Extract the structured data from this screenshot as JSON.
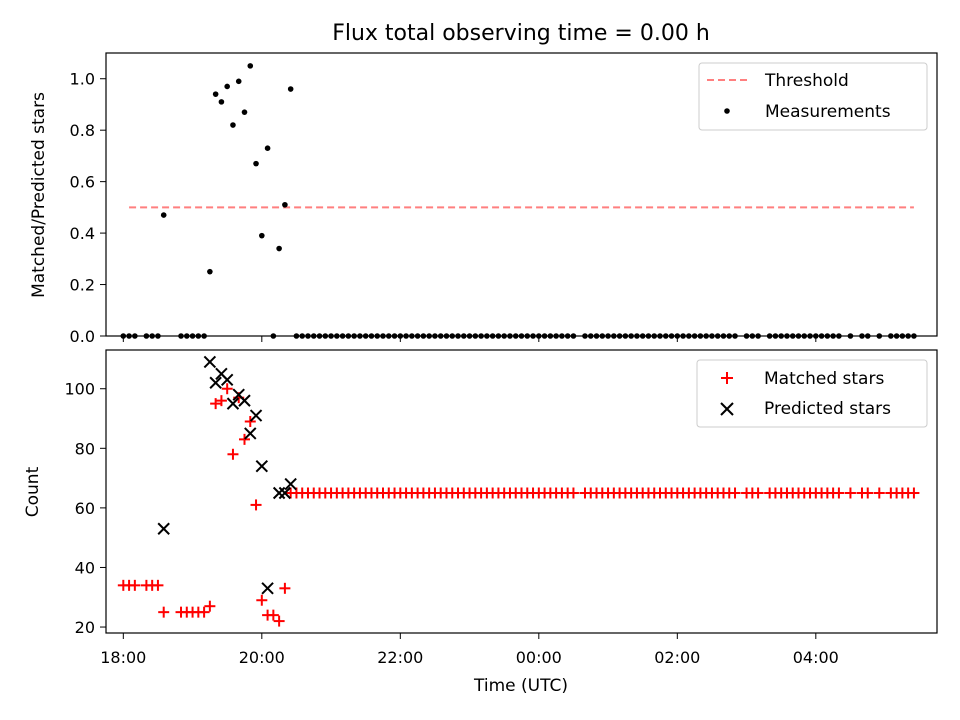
{
  "chart_data": [
    {
      "type": "scatter",
      "title": "Flux total observing time = 0.00 h",
      "xlabel": "",
      "ylabel": "Matched/Predicted stars",
      "xlim": [
        "17:45",
        "05:45"
      ],
      "ylim": [
        0,
        1.1
      ],
      "yticks": [
        "0.0",
        "0.2",
        "0.4",
        "0.6",
        "0.8",
        "1.0"
      ],
      "grid": false,
      "legend_position": "top-right",
      "threshold": {
        "name": "Threshold",
        "value": 0.5,
        "x_range": [
          "18:05",
          "05:25"
        ],
        "color": "#ff7f7f",
        "style": "dashed"
      },
      "series": [
        {
          "name": "Measurements",
          "color": "#000000",
          "marker": "dot",
          "points": [
            [
              "18:00",
              0.0
            ],
            [
              "18:05",
              0.0
            ],
            [
              "18:10",
              0.0
            ],
            [
              "18:20",
              0.0
            ],
            [
              "18:25",
              0.0
            ],
            [
              "18:30",
              0.0
            ],
            [
              "18:35",
              0.47
            ],
            [
              "18:50",
              0.0
            ],
            [
              "18:55",
              0.0
            ],
            [
              "19:00",
              0.0
            ],
            [
              "19:05",
              0.0
            ],
            [
              "19:10",
              0.0
            ],
            [
              "19:15",
              0.25
            ],
            [
              "19:20",
              0.94
            ],
            [
              "19:25",
              0.91
            ],
            [
              "19:30",
              0.97
            ],
            [
              "19:35",
              0.82
            ],
            [
              "19:40",
              0.99
            ],
            [
              "19:45",
              0.87
            ],
            [
              "19:50",
              1.05
            ],
            [
              "19:55",
              0.67
            ],
            [
              "20:00",
              0.39
            ],
            [
              "20:05",
              0.73
            ],
            [
              "20:10",
              0.0
            ],
            [
              "20:15",
              0.34
            ],
            [
              "20:20",
              0.51
            ],
            [
              "20:25",
              0.96
            ],
            [
              "20:30",
              0.0
            ],
            [
              "20:35",
              0.0
            ]
          ],
          "zero_range": [
            "20:30",
            "05:25"
          ],
          "zero_step_minutes": 5,
          "zero_gaps": [
            "00:35",
            "02:55",
            "03:15",
            "04:25",
            "04:35",
            "04:50",
            "05:00"
          ]
        }
      ]
    },
    {
      "type": "scatter",
      "title": "",
      "xlabel": "Time (UTC)",
      "ylabel": "Count",
      "xlim": [
        "17:45",
        "05:45"
      ],
      "ylim": [
        18,
        113
      ],
      "yticks": [
        "20",
        "40",
        "60",
        "80",
        "100"
      ],
      "xticks": [
        "18:00",
        "20:00",
        "22:00",
        "00:00",
        "02:00",
        "04:00"
      ],
      "grid": false,
      "legend_position": "top-right",
      "series": [
        {
          "name": "Matched stars",
          "color": "#ff0000",
          "marker": "plus",
          "points": [
            [
              "18:00",
              34
            ],
            [
              "18:05",
              34
            ],
            [
              "18:10",
              34
            ],
            [
              "18:20",
              34
            ],
            [
              "18:25",
              34
            ],
            [
              "18:30",
              34
            ],
            [
              "18:35",
              25
            ],
            [
              "18:50",
              25
            ],
            [
              "18:55",
              25
            ],
            [
              "19:00",
              25
            ],
            [
              "19:05",
              25
            ],
            [
              "19:10",
              25
            ],
            [
              "19:15",
              27
            ],
            [
              "19:20",
              95
            ],
            [
              "19:25",
              96
            ],
            [
              "19:30",
              100
            ],
            [
              "19:35",
              78
            ],
            [
              "19:40",
              97
            ],
            [
              "19:45",
              83
            ],
            [
              "19:50",
              89
            ],
            [
              "19:55",
              61
            ],
            [
              "20:00",
              29
            ],
            [
              "20:05",
              24
            ],
            [
              "20:10",
              24
            ],
            [
              "20:15",
              22
            ],
            [
              "20:20",
              33
            ],
            [
              "20:25",
              65
            ]
          ],
          "constant_range": [
            "20:30",
            "05:25"
          ],
          "constant_value": 65,
          "step_minutes": 5,
          "gaps": [
            "00:35",
            "02:55",
            "03:15",
            "04:25",
            "04:35",
            "04:50",
            "05:00"
          ]
        },
        {
          "name": "Predicted stars",
          "color": "#000000",
          "marker": "x",
          "points": [
            [
              "18:35",
              53
            ],
            [
              "19:15",
              109
            ],
            [
              "19:20",
              102
            ],
            [
              "19:25",
              105
            ],
            [
              "19:30",
              103
            ],
            [
              "19:35",
              95
            ],
            [
              "19:40",
              98
            ],
            [
              "19:45",
              96
            ],
            [
              "19:50",
              85
            ],
            [
              "19:55",
              91
            ],
            [
              "20:00",
              74
            ],
            [
              "20:05",
              33
            ],
            [
              "20:15",
              65
            ],
            [
              "20:20",
              65
            ],
            [
              "20:25",
              68
            ]
          ]
        }
      ]
    }
  ]
}
